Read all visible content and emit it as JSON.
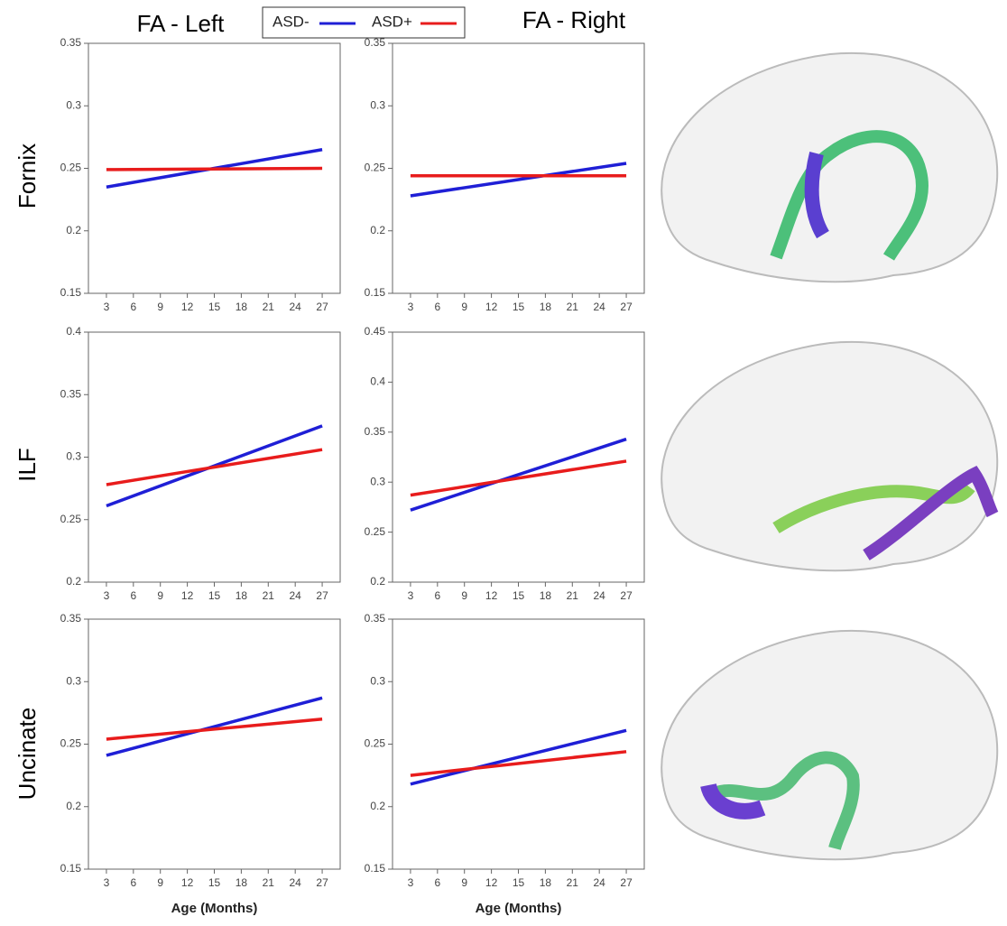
{
  "column_titles": [
    "FA - Left",
    "FA - Right"
  ],
  "row_labels": [
    "Fornix",
    "ILF",
    "Uncinate"
  ],
  "chart_data": [
    {
      "type": "line",
      "x": [
        3,
        27
      ],
      "xlim": [
        1,
        29
      ],
      "xticks": [
        3,
        6,
        9,
        12,
        15,
        18,
        21,
        24,
        27
      ],
      "ylim": [
        0.15,
        0.35
      ],
      "yticks": [
        0.15,
        0.2,
        0.25,
        0.3,
        0.35
      ],
      "series": [
        {
          "name": "ASD-",
          "color": "#1f1fd6",
          "values": [
            0.235,
            0.265
          ]
        },
        {
          "name": "ASD+",
          "color": "#e81c1c",
          "values": [
            0.249,
            0.25
          ]
        }
      ]
    },
    {
      "type": "line",
      "x": [
        3,
        27
      ],
      "xlim": [
        1,
        29
      ],
      "xticks": [
        3,
        6,
        9,
        12,
        15,
        18,
        21,
        24,
        27
      ],
      "ylim": [
        0.15,
        0.35
      ],
      "yticks": [
        0.15,
        0.2,
        0.25,
        0.3,
        0.35
      ],
      "series": [
        {
          "color": "#1f1fd6",
          "values": [
            0.228,
            0.254
          ]
        },
        {
          "color": "#e81c1c",
          "values": [
            0.244,
            0.244
          ]
        }
      ]
    },
    {
      "type": "line",
      "x": [
        3,
        27
      ],
      "xlim": [
        1,
        29
      ],
      "xticks": [
        3,
        6,
        9,
        12,
        15,
        18,
        21,
        24,
        27
      ],
      "ylim": [
        0.2,
        0.4
      ],
      "yticks": [
        0.2,
        0.25,
        0.3,
        0.35,
        0.4
      ],
      "series": [
        {
          "color": "#1f1fd6",
          "values": [
            0.261,
            0.325
          ]
        },
        {
          "color": "#e81c1c",
          "values": [
            0.278,
            0.306
          ]
        }
      ]
    },
    {
      "type": "line",
      "x": [
        3,
        27
      ],
      "xlim": [
        1,
        29
      ],
      "xticks": [
        3,
        6,
        9,
        12,
        15,
        18,
        21,
        24,
        27
      ],
      "ylim": [
        0.2,
        0.45
      ],
      "yticks": [
        0.2,
        0.25,
        0.3,
        0.35,
        0.4,
        0.45
      ],
      "series": [
        {
          "color": "#1f1fd6",
          "values": [
            0.272,
            0.343
          ]
        },
        {
          "color": "#e81c1c",
          "values": [
            0.287,
            0.321
          ]
        }
      ]
    },
    {
      "type": "line",
      "x": [
        3,
        27
      ],
      "xlim": [
        1,
        29
      ],
      "xticks": [
        3,
        6,
        9,
        12,
        15,
        18,
        21,
        24,
        27
      ],
      "ylim": [
        0.15,
        0.35
      ],
      "yticks": [
        0.15,
        0.2,
        0.25,
        0.3,
        0.35
      ],
      "xlabel": "Age (Months)",
      "series": [
        {
          "color": "#1f1fd6",
          "values": [
            0.241,
            0.287
          ]
        },
        {
          "color": "#e81c1c",
          "values": [
            0.254,
            0.27
          ]
        }
      ]
    },
    {
      "type": "line",
      "x": [
        3,
        27
      ],
      "xlim": [
        1,
        29
      ],
      "xticks": [
        3,
        6,
        9,
        12,
        15,
        18,
        21,
        24,
        27
      ],
      "ylim": [
        0.15,
        0.35
      ],
      "yticks": [
        0.15,
        0.2,
        0.25,
        0.3,
        0.35
      ],
      "xlabel": "Age (Months)",
      "series": [
        {
          "color": "#1f1fd6",
          "values": [
            0.218,
            0.261
          ]
        },
        {
          "color": "#e81c1c",
          "values": [
            0.225,
            0.244
          ]
        }
      ]
    }
  ]
}
